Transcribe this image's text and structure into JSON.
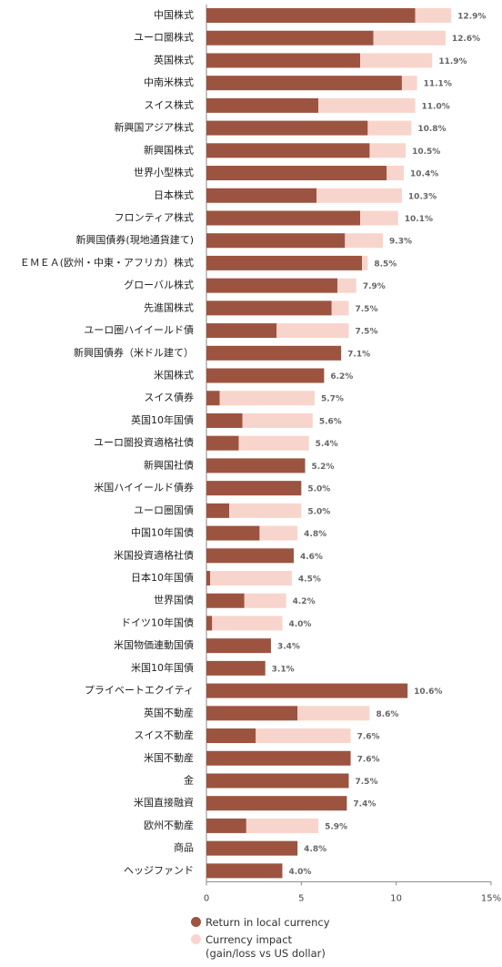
{
  "chart_data": {
    "type": "stacked_bar_horizontal",
    "categories": [
      "中国株式",
      "ユーロ圏株式",
      "英国株式",
      "中南米株式",
      "スイス株式",
      "新興国アジア株式",
      "新興国株式",
      "世界小型株式",
      "日本株式",
      "フロンティア株式",
      "新興国債券(現地通貨建て)",
      "ＥＭＥＡ(欧州・中東・アフリカ）株式",
      "グローバル株式",
      "先進国株式",
      "ユーロ圏ハイイールド債",
      "新興国債券（米ドル建て）",
      "米国株式",
      "スイス債券",
      "英国10年国債",
      "ユーロ圏投資適格社債",
      "新興国社債",
      "米国ハイイールド債券",
      "ユーロ圏国債",
      "中国10年国債",
      "米国投資適格社債",
      "日本10年国債",
      "世界国債",
      "ドイツ10年国債",
      "米国物価連動国債",
      "米国10年国債",
      "プライベートエクイティ",
      "英国不動産",
      "スイス不動産",
      "米国不動産",
      "金",
      "米国直接融資",
      "欧州不動産",
      "商品",
      "ヘッジファンド"
    ],
    "series": [
      {
        "name": "Return in local currency",
        "color": "#9c5440",
        "values": [
          11.0,
          8.8,
          8.1,
          10.3,
          5.9,
          8.5,
          8.6,
          9.5,
          5.8,
          8.1,
          7.3,
          8.2,
          6.9,
          6.6,
          3.7,
          7.1,
          6.2,
          0.7,
          1.9,
          1.7,
          5.2,
          5.0,
          1.2,
          2.8,
          4.6,
          0.2,
          2.0,
          0.3,
          3.4,
          3.1,
          10.6,
          4.8,
          2.6,
          7.6,
          7.5,
          7.4,
          2.1,
          4.8,
          4.0
        ]
      },
      {
        "name": "Currency impact\n(gain/loss vs US dollar)",
        "color": "#f8d5cc",
        "values": [
          1.9,
          3.8,
          3.8,
          0.8,
          5.1,
          2.3,
          1.9,
          0.9,
          4.5,
          2.0,
          2.0,
          0.3,
          1.0,
          0.9,
          3.8,
          null,
          null,
          5.0,
          3.7,
          3.7,
          null,
          null,
          3.8,
          2.0,
          null,
          4.3,
          2.2,
          3.7,
          null,
          null,
          null,
          3.8,
          5.0,
          null,
          null,
          null,
          3.8,
          null,
          null
        ]
      }
    ],
    "totals": {
      "values": [
        12.9,
        12.6,
        11.9,
        11.1,
        11.0,
        10.8,
        10.5,
        10.4,
        10.3,
        10.1,
        9.3,
        8.5,
        7.9,
        7.5,
        7.5,
        7.1,
        6.2,
        5.7,
        5.6,
        5.4,
        5.2,
        5.0,
        5.0,
        4.8,
        4.6,
        4.5,
        4.2,
        4.0,
        3.4,
        3.1,
        10.6,
        8.6,
        7.6,
        7.6,
        7.5,
        7.4,
        5.9,
        4.8,
        4.0
      ],
      "value_labels": [
        "12.9%",
        "12.6%",
        "11.9%",
        "11.1%",
        "11.0%",
        "10.8%",
        "10.5%",
        "10.4%",
        "10.3%",
        "10.1%",
        "9.3%",
        "8.5%",
        "7.9%",
        "7.5%",
        "7.5%",
        "7.1%",
        "6.2%",
        "5.7%",
        "5.6%",
        "5.4%",
        "5.2%",
        "5.0%",
        "5.0%",
        "4.8%",
        "4.6%",
        "4.5%",
        "4.2%",
        "4.0%",
        "3.4%",
        "3.1%",
        "10.6%",
        "8.6%",
        "7.6%",
        "7.6%",
        "7.5%",
        "7.4%",
        "5.9%",
        "4.8%",
        "4.0%"
      ]
    },
    "xlim": [
      0,
      15
    ],
    "xticks": [
      0,
      5,
      10,
      {
        "value": 15,
        "label": "15%"
      }
    ]
  }
}
